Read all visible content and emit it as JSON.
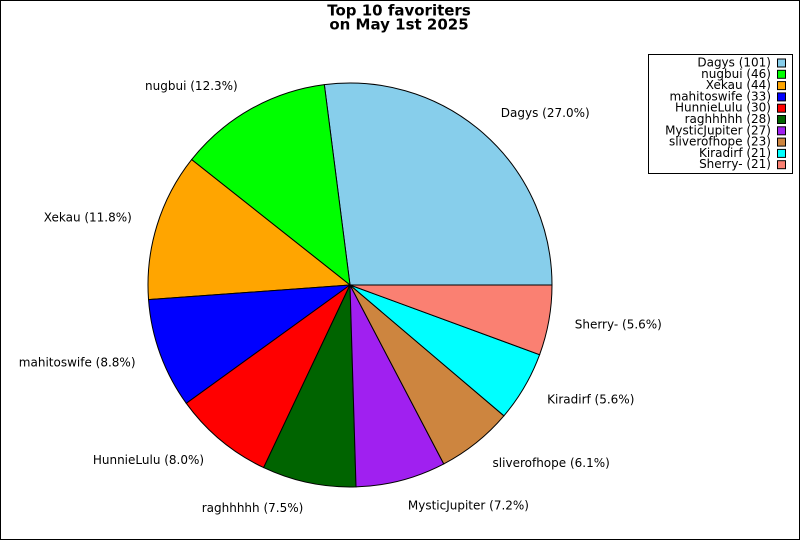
{
  "chart_data": {
    "type": "pie",
    "title": [
      "Top 10 favoriters",
      "on May 1st 2025"
    ],
    "categories": [
      "Dagys (101)",
      "nugbui (46)",
      "Xekau (44)",
      "mahitoswife (33)",
      "HunnieLulu (30)",
      "raghhhhh (28)",
      "MysticJupiter (27)",
      "sliverofhope (23)",
      "Kiradirf (21)",
      "Sherry- (21)"
    ],
    "values": [
      27.0,
      12.3,
      11.8,
      8.8,
      8.0,
      7.5,
      7.2,
      6.1,
      5.6,
      5.6
    ],
    "value_labels": [
      "Dagys (27.0%)",
      "nugbui (12.3%)",
      "Xekau (11.8%)",
      "mahitoswife (8.8%)",
      "HunnieLulu (8.0%)",
      "raghhhhh (7.5%)",
      "MysticJupiter (7.2%)",
      "sliverofhope (6.1%)",
      "Kiradirf (5.6%)",
      "Sherry- (5.6%)"
    ],
    "colors": [
      "#87ceeb",
      "#00ff00",
      "#ffa500",
      "#0000ff",
      "#ff0000",
      "#006400",
      "#a020f0",
      "#cd853f",
      "#00ffff",
      "#fa8072"
    ],
    "legend": "upper right"
  }
}
